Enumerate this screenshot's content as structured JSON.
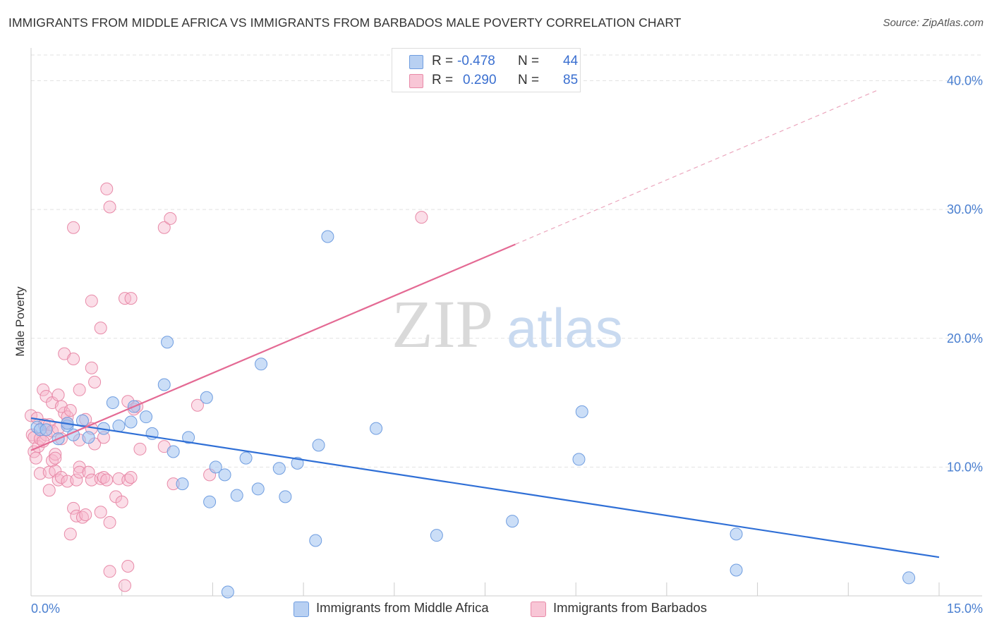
{
  "title": "IMMIGRANTS FROM MIDDLE AFRICA VS IMMIGRANTS FROM BARBADOS MALE POVERTY CORRELATION CHART",
  "source": "Source: ZipAtlas.com",
  "watermark": {
    "zip": "ZIP",
    "atlas": "atlas"
  },
  "legend": {
    "r_label": "R =",
    "n_label": "N =",
    "rows": [
      {
        "r": "-0.478",
        "n": "44"
      },
      {
        "r": "0.290",
        "n": "85"
      }
    ]
  },
  "chart_data": {
    "type": "scatter",
    "title": "IMMIGRANTS FROM MIDDLE AFRICA VS IMMIGRANTS FROM BARBADOS MALE POVERTY CORRELATION CHART",
    "xlabel": "",
    "ylabel": "Male Poverty",
    "xlim": [
      0,
      15
    ],
    "ylim": [
      0,
      42
    ],
    "x_tick_labels": [
      "0.0%",
      "15.0%"
    ],
    "y_ticks": [
      10,
      20,
      30,
      40
    ],
    "y_tick_labels": [
      "10.0%",
      "20.0%",
      "30.0%",
      "40.0%"
    ],
    "grid": true,
    "colors": {
      "blue": "#4a86e8",
      "pink": "#e8739a",
      "blue_line": "#2f6fd6",
      "pink_line": "#e46a94"
    },
    "series": [
      {
        "name": "Immigrants from Middle Africa",
        "color": "blue",
        "points": [
          [
            0.1,
            13.1
          ],
          [
            0.15,
            12.9
          ],
          [
            0.25,
            12.9
          ],
          [
            0.45,
            12.2
          ],
          [
            0.6,
            13.2
          ],
          [
            0.7,
            12.5
          ],
          [
            0.85,
            13.6
          ],
          [
            0.6,
            13.4
          ],
          [
            0.95,
            12.3
          ],
          [
            1.2,
            13.0
          ],
          [
            1.35,
            15.0
          ],
          [
            1.45,
            13.2
          ],
          [
            1.65,
            13.5
          ],
          [
            1.7,
            14.7
          ],
          [
            1.9,
            13.9
          ],
          [
            2.0,
            12.6
          ],
          [
            2.2,
            16.4
          ],
          [
            2.25,
            19.7
          ],
          [
            2.35,
            11.2
          ],
          [
            2.5,
            8.7
          ],
          [
            2.6,
            12.3
          ],
          [
            2.9,
            15.4
          ],
          [
            2.95,
            7.3
          ],
          [
            3.05,
            10.0
          ],
          [
            3.2,
            9.4
          ],
          [
            3.25,
            0.3
          ],
          [
            3.4,
            7.8
          ],
          [
            3.55,
            10.7
          ],
          [
            3.75,
            8.3
          ],
          [
            3.8,
            18.0
          ],
          [
            4.1,
            9.9
          ],
          [
            4.2,
            7.7
          ],
          [
            4.4,
            10.3
          ],
          [
            4.7,
            4.3
          ],
          [
            4.75,
            11.7
          ],
          [
            4.9,
            27.9
          ],
          [
            5.7,
            13.0
          ],
          [
            6.7,
            4.7
          ],
          [
            7.95,
            5.8
          ],
          [
            9.05,
            10.6
          ],
          [
            9.1,
            14.3
          ],
          [
            11.65,
            4.8
          ],
          [
            11.65,
            2.0
          ],
          [
            14.5,
            1.4
          ]
        ],
        "trend": {
          "x": [
            0.0,
            15.0
          ],
          "y": [
            13.8,
            3.0
          ]
        }
      },
      {
        "name": "Immigrants from Barbados",
        "color": "pink",
        "points": [
          [
            0.0,
            14.0
          ],
          [
            0.02,
            12.5
          ],
          [
            0.05,
            11.2
          ],
          [
            0.05,
            12.3
          ],
          [
            0.08,
            10.7
          ],
          [
            0.1,
            13.8
          ],
          [
            0.12,
            11.6
          ],
          [
            0.15,
            9.5
          ],
          [
            0.15,
            12.2
          ],
          [
            0.2,
            16.0
          ],
          [
            0.22,
            13.3
          ],
          [
            0.25,
            12.5
          ],
          [
            0.25,
            15.5
          ],
          [
            0.3,
            9.6
          ],
          [
            0.3,
            8.2
          ],
          [
            0.3,
            13.3
          ],
          [
            0.35,
            10.5
          ],
          [
            0.35,
            12.8
          ],
          [
            0.35,
            15.0
          ],
          [
            0.4,
            11.0
          ],
          [
            0.4,
            9.7
          ],
          [
            0.4,
            10.7
          ],
          [
            0.45,
            9.0
          ],
          [
            0.45,
            13.0
          ],
          [
            0.45,
            15.6
          ],
          [
            0.5,
            12.2
          ],
          [
            0.55,
            14.2
          ],
          [
            0.55,
            18.8
          ],
          [
            0.5,
            9.2
          ],
          [
            0.5,
            14.7
          ],
          [
            0.6,
            13.9
          ],
          [
            0.6,
            8.9
          ],
          [
            0.65,
            14.4
          ],
          [
            0.65,
            4.8
          ],
          [
            0.7,
            18.4
          ],
          [
            0.7,
            28.6
          ],
          [
            0.7,
            6.8
          ],
          [
            0.75,
            9.0
          ],
          [
            0.8,
            12.1
          ],
          [
            0.8,
            16.0
          ],
          [
            0.75,
            6.2
          ],
          [
            0.8,
            10.0
          ],
          [
            0.8,
            9.6
          ],
          [
            0.85,
            6.1
          ],
          [
            0.9,
            6.3
          ],
          [
            0.9,
            13.7
          ],
          [
            0.95,
            9.6
          ],
          [
            1.0,
            13.0
          ],
          [
            1.0,
            17.7
          ],
          [
            1.0,
            22.9
          ],
          [
            1.0,
            9.0
          ],
          [
            1.05,
            16.6
          ],
          [
            1.05,
            11.8
          ],
          [
            1.15,
            9.1
          ],
          [
            1.15,
            6.5
          ],
          [
            1.15,
            20.8
          ],
          [
            1.2,
            9.2
          ],
          [
            1.2,
            12.3
          ],
          [
            1.25,
            9.0
          ],
          [
            1.25,
            31.6
          ],
          [
            1.3,
            30.2
          ],
          [
            1.3,
            5.7
          ],
          [
            1.3,
            1.9
          ],
          [
            1.4,
            7.7
          ],
          [
            1.45,
            9.1
          ],
          [
            1.5,
            7.3
          ],
          [
            1.55,
            0.8
          ],
          [
            1.55,
            23.1
          ],
          [
            1.6,
            15.1
          ],
          [
            1.6,
            2.3
          ],
          [
            1.65,
            23.1
          ],
          [
            1.6,
            9.0
          ],
          [
            1.65,
            9.2
          ],
          [
            1.7,
            14.5
          ],
          [
            1.75,
            14.7
          ],
          [
            1.8,
            11.4
          ],
          [
            2.2,
            11.6
          ],
          [
            2.2,
            28.6
          ],
          [
            2.3,
            29.3
          ],
          [
            2.35,
            8.7
          ],
          [
            2.75,
            14.8
          ],
          [
            2.95,
            9.4
          ],
          [
            6.45,
            29.4
          ],
          [
            0.6,
            13.4
          ],
          [
            0.2,
            12.0
          ]
        ],
        "trend": {
          "x": [
            0.0,
            8.0
          ],
          "y": [
            11.3,
            27.3
          ]
        },
        "trend_dashed": {
          "x": [
            8.0,
            14.0
          ],
          "y": [
            27.3,
            39.3
          ]
        }
      }
    ]
  },
  "bottom_legend": {
    "items": [
      {
        "label": "Immigrants from Middle Africa"
      },
      {
        "label": "Immigrants from Barbados"
      }
    ]
  }
}
